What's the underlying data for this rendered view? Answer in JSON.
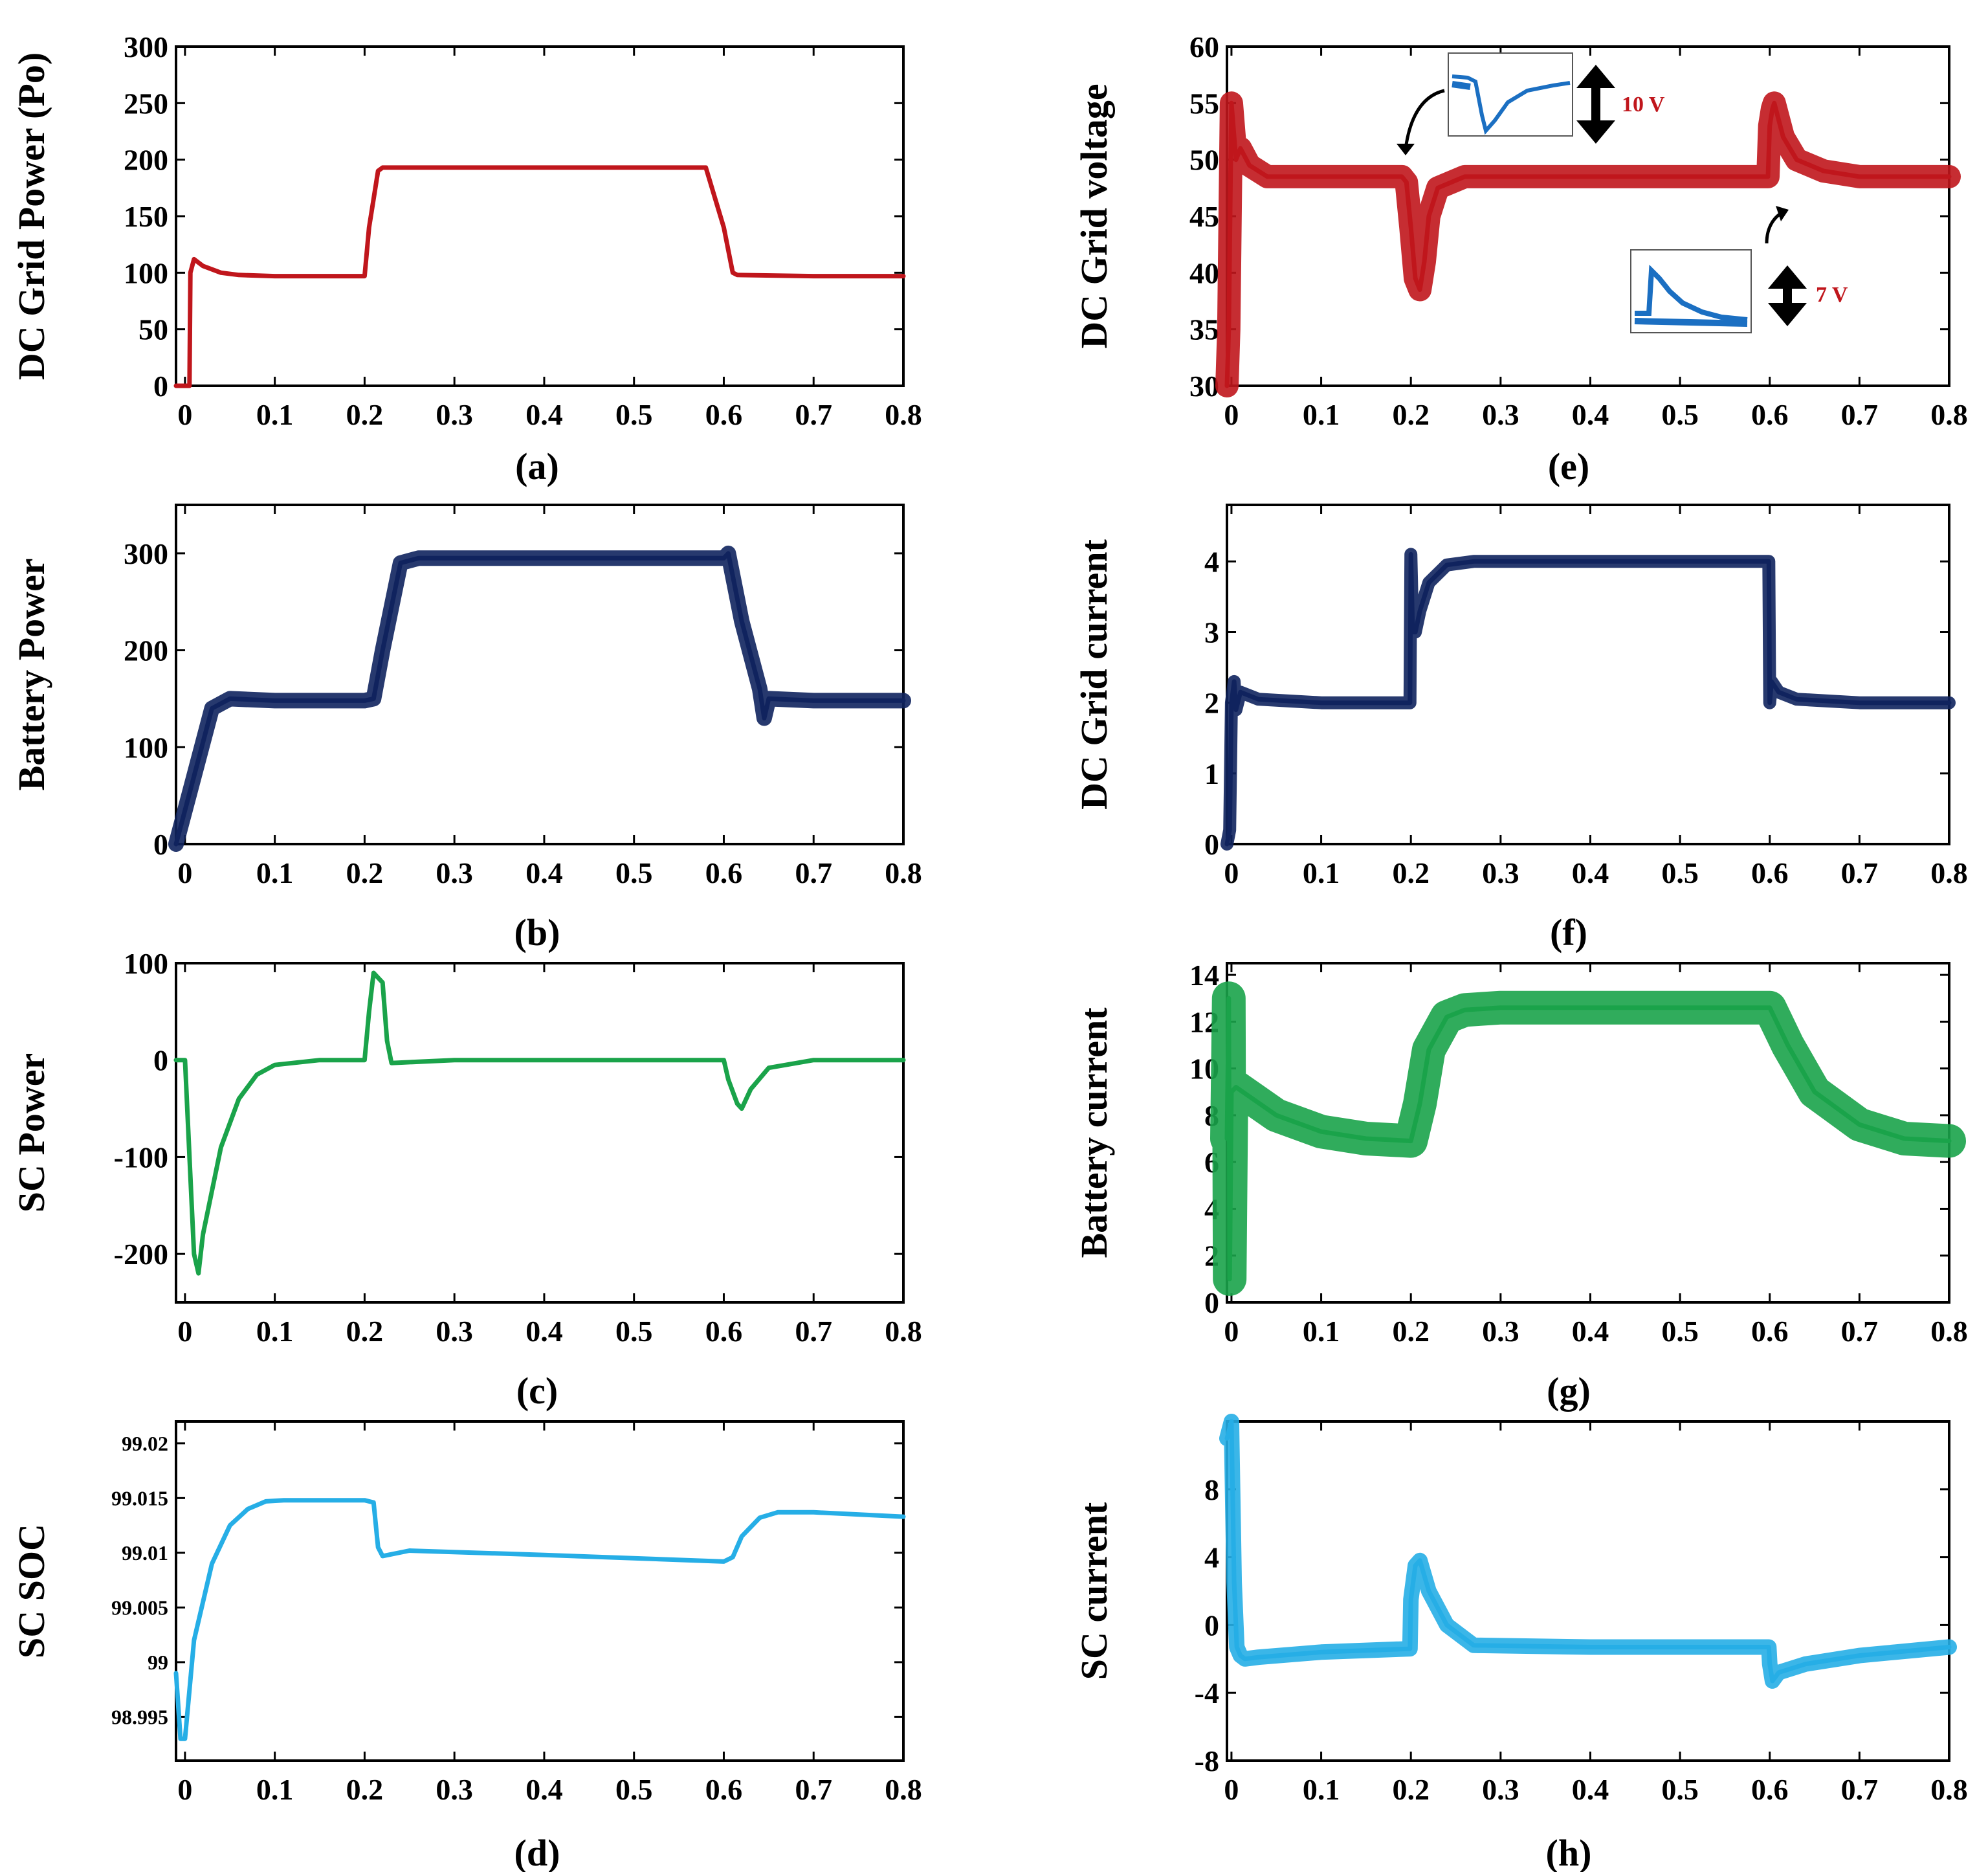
{
  "chart_data": [
    {
      "panel": "(a)",
      "type": "line",
      "color": "#c0161c",
      "ylabel": "DC Grid Power (Po)",
      "xlim": [
        -0.01,
        0.8
      ],
      "ylim": [
        0,
        300
      ],
      "xticks": [
        "0",
        "0.1",
        "0.2",
        "0.3",
        "0.4",
        "0.5",
        "0.6",
        "0.7",
        "0.8"
      ],
      "yticks": [
        "0",
        "50",
        "100",
        "150",
        "200",
        "250",
        "300"
      ],
      "x": [
        -0.01,
        0.005,
        0.006,
        0.01,
        0.02,
        0.04,
        0.06,
        0.1,
        0.2,
        0.205,
        0.215,
        0.22,
        0.25,
        0.4,
        0.58,
        0.6,
        0.61,
        0.615,
        0.7,
        0.8
      ],
      "y": [
        0,
        0,
        100,
        112,
        106,
        100,
        98,
        97,
        97,
        140,
        190,
        193,
        193,
        193,
        193,
        140,
        100,
        98,
        97,
        97
      ]
    },
    {
      "panel": "(b)",
      "type": "line",
      "color": "#10235e",
      "band": 12,
      "ylabel": "Battery Power",
      "xlim": [
        -0.01,
        0.8
      ],
      "ylim": [
        0,
        350
      ],
      "xticks": [
        "0",
        "0.1",
        "0.2",
        "0.3",
        "0.4",
        "0.5",
        "0.6",
        "0.7",
        "0.8"
      ],
      "yticks": [
        "0",
        "100",
        "200",
        "300"
      ],
      "x": [
        -0.01,
        0.01,
        0.03,
        0.05,
        0.1,
        0.2,
        0.21,
        0.22,
        0.24,
        0.26,
        0.4,
        0.6,
        0.605,
        0.62,
        0.64,
        0.645,
        0.65,
        0.7,
        0.8
      ],
      "y": [
        0,
        70,
        140,
        150,
        148,
        148,
        150,
        200,
        290,
        295,
        295,
        295,
        300,
        230,
        160,
        130,
        150,
        148,
        148
      ]
    },
    {
      "panel": "(c)",
      "type": "line",
      "color": "#1aa34a",
      "ylabel": "SC Power",
      "xlim": [
        -0.01,
        0.8
      ],
      "ylim": [
        -250,
        100
      ],
      "xticks": [
        "0",
        "0.1",
        "0.2",
        "0.3",
        "0.4",
        "0.5",
        "0.6",
        "0.7",
        "0.8"
      ],
      "yticks": [
        "-200",
        "-100",
        "0",
        "100"
      ],
      "x": [
        -0.01,
        0.0,
        0.005,
        0.01,
        0.015,
        0.02,
        0.04,
        0.06,
        0.08,
        0.1,
        0.15,
        0.2,
        0.205,
        0.21,
        0.22,
        0.225,
        0.23,
        0.3,
        0.5,
        0.6,
        0.605,
        0.615,
        0.62,
        0.63,
        0.65,
        0.7,
        0.8
      ],
      "y": [
        0,
        0,
        -100,
        -200,
        -220,
        -180,
        -90,
        -40,
        -15,
        -5,
        0,
        0,
        50,
        90,
        80,
        20,
        -3,
        0,
        0,
        0,
        -20,
        -45,
        -50,
        -30,
        -8,
        0,
        0
      ]
    },
    {
      "panel": "(d)",
      "type": "line",
      "color": "#26aee6",
      "ylabel": "SC SOC",
      "xlim": [
        -0.01,
        0.8
      ],
      "ylim": [
        98.991,
        99.022
      ],
      "xticks": [
        "0",
        "0.1",
        "0.2",
        "0.3",
        "0.4",
        "0.5",
        "0.6",
        "0.7",
        "0.8"
      ],
      "yticks": [
        "98.995",
        "99",
        "99.005",
        "99.01",
        "99.015",
        "99.02"
      ],
      "x": [
        -0.01,
        -0.005,
        0.0,
        0.01,
        0.03,
        0.05,
        0.07,
        0.09,
        0.11,
        0.2,
        0.21,
        0.215,
        0.22,
        0.25,
        0.4,
        0.6,
        0.61,
        0.62,
        0.64,
        0.66,
        0.7,
        0.8
      ],
      "y": [
        98.999,
        98.993,
        98.993,
        99.002,
        99.009,
        99.0125,
        99.014,
        99.0147,
        99.0148,
        99.0148,
        99.0146,
        99.0105,
        99.0097,
        99.0102,
        99.0098,
        99.0092,
        99.0096,
        99.0115,
        99.0132,
        99.0137,
        99.0137,
        99.0133
      ]
    },
    {
      "panel": "(e)",
      "type": "line",
      "color": "#c0161c",
      "band": 18,
      "ylabel": "DC Grid voltage",
      "xlim": [
        -0.005,
        0.8
      ],
      "ylim": [
        30,
        60
      ],
      "xticks": [
        "0",
        "0.1",
        "0.2",
        "0.3",
        "0.4",
        "0.5",
        "0.6",
        "0.7",
        "0.8"
      ],
      "yticks": [
        "30",
        "35",
        "40",
        "45",
        "50",
        "55",
        "60"
      ],
      "x": [
        -0.005,
        -0.003,
        0.0,
        0.005,
        0.01,
        0.02,
        0.04,
        0.1,
        0.19,
        0.195,
        0.2,
        0.205,
        0.21,
        0.215,
        0.22,
        0.23,
        0.26,
        0.4,
        0.598,
        0.6,
        0.603,
        0.605,
        0.615,
        0.63,
        0.66,
        0.7,
        0.8
      ],
      "y": [
        30,
        35,
        55,
        50,
        51,
        49.5,
        48.5,
        48.5,
        48.5,
        48,
        44,
        39.5,
        38.5,
        41,
        45,
        47.5,
        48.5,
        48.5,
        48.5,
        53,
        54.5,
        55,
        52,
        50,
        49,
        48.5,
        48.5
      ],
      "annotations": [
        "10 V",
        "7 V"
      ]
    },
    {
      "panel": "(f)",
      "type": "line",
      "color": "#10235e",
      "band": 10,
      "ylabel": "DC Grid current",
      "xlim": [
        -0.005,
        0.8
      ],
      "ylim": [
        0,
        4.8
      ],
      "xticks": [
        "0",
        "0.1",
        "0.2",
        "0.3",
        "0.4",
        "0.5",
        "0.6",
        "0.7",
        "0.8"
      ],
      "yticks": [
        "0",
        "1",
        "2",
        "3",
        "4"
      ],
      "x": [
        -0.005,
        -0.002,
        0.0,
        0.003,
        0.005,
        0.01,
        0.03,
        0.1,
        0.199,
        0.2,
        0.202,
        0.205,
        0.21,
        0.22,
        0.24,
        0.27,
        0.4,
        0.599,
        0.6,
        0.602,
        0.61,
        0.63,
        0.7,
        0.8
      ],
      "y": [
        0,
        0.2,
        2.0,
        2.3,
        1.9,
        2.15,
        2.05,
        2.0,
        2.0,
        4.1,
        3.0,
        3.0,
        3.3,
        3.7,
        3.95,
        4.0,
        4.0,
        4.0,
        2.0,
        2.3,
        2.15,
        2.05,
        2.0,
        2.0
      ]
    },
    {
      "panel": "(g)",
      "type": "line",
      "color": "#1aa34a",
      "band": 26,
      "ylabel": "Battery current",
      "xlim": [
        -0.005,
        0.8
      ],
      "ylim": [
        0,
        14.5
      ],
      "xticks": [
        "0",
        "0.1",
        "0.2",
        "0.3",
        "0.4",
        "0.5",
        "0.6",
        "0.7",
        "0.8"
      ],
      "yticks": [
        "0",
        "2",
        "4",
        "6",
        "8",
        "10",
        "12",
        "14"
      ],
      "x": [
        -0.005,
        -0.003,
        -0.002,
        0.0,
        0.005,
        0.02,
        0.05,
        0.1,
        0.15,
        0.2,
        0.21,
        0.22,
        0.24,
        0.26,
        0.3,
        0.4,
        0.6,
        0.62,
        0.65,
        0.7,
        0.75,
        0.8
      ],
      "y": [
        7,
        13,
        1,
        9,
        9.2,
        8.8,
        8.0,
        7.3,
        7.0,
        6.9,
        8.5,
        10.8,
        12.2,
        12.5,
        12.6,
        12.6,
        12.6,
        11.0,
        9.0,
        7.6,
        7.0,
        6.9
      ]
    },
    {
      "panel": "(h)",
      "type": "line",
      "color": "#26aee6",
      "band": 12,
      "ylabel": "SC current",
      "xlim": [
        -0.005,
        0.8
      ],
      "ylim": [
        -8,
        12
      ],
      "xticks": [
        "0",
        "0.1",
        "0.2",
        "0.3",
        "0.4",
        "0.5",
        "0.6",
        "0.7",
        "0.8"
      ],
      "yticks": [
        "-8",
        "-4",
        "0",
        "4",
        "8"
      ],
      "x": [
        -0.005,
        0.0,
        0.003,
        0.006,
        0.01,
        0.015,
        0.03,
        0.1,
        0.199,
        0.2,
        0.205,
        0.21,
        0.22,
        0.24,
        0.27,
        0.4,
        0.599,
        0.6,
        0.603,
        0.61,
        0.64,
        0.7,
        0.8
      ],
      "y": [
        11,
        12,
        2.5,
        -1.3,
        -1.8,
        -2,
        -1.9,
        -1.6,
        -1.4,
        1.5,
        3.5,
        3.8,
        2,
        0,
        -1.2,
        -1.3,
        -1.3,
        -2.3,
        -3.3,
        -2.8,
        -2.3,
        -1.8,
        -1.3
      ]
    }
  ]
}
